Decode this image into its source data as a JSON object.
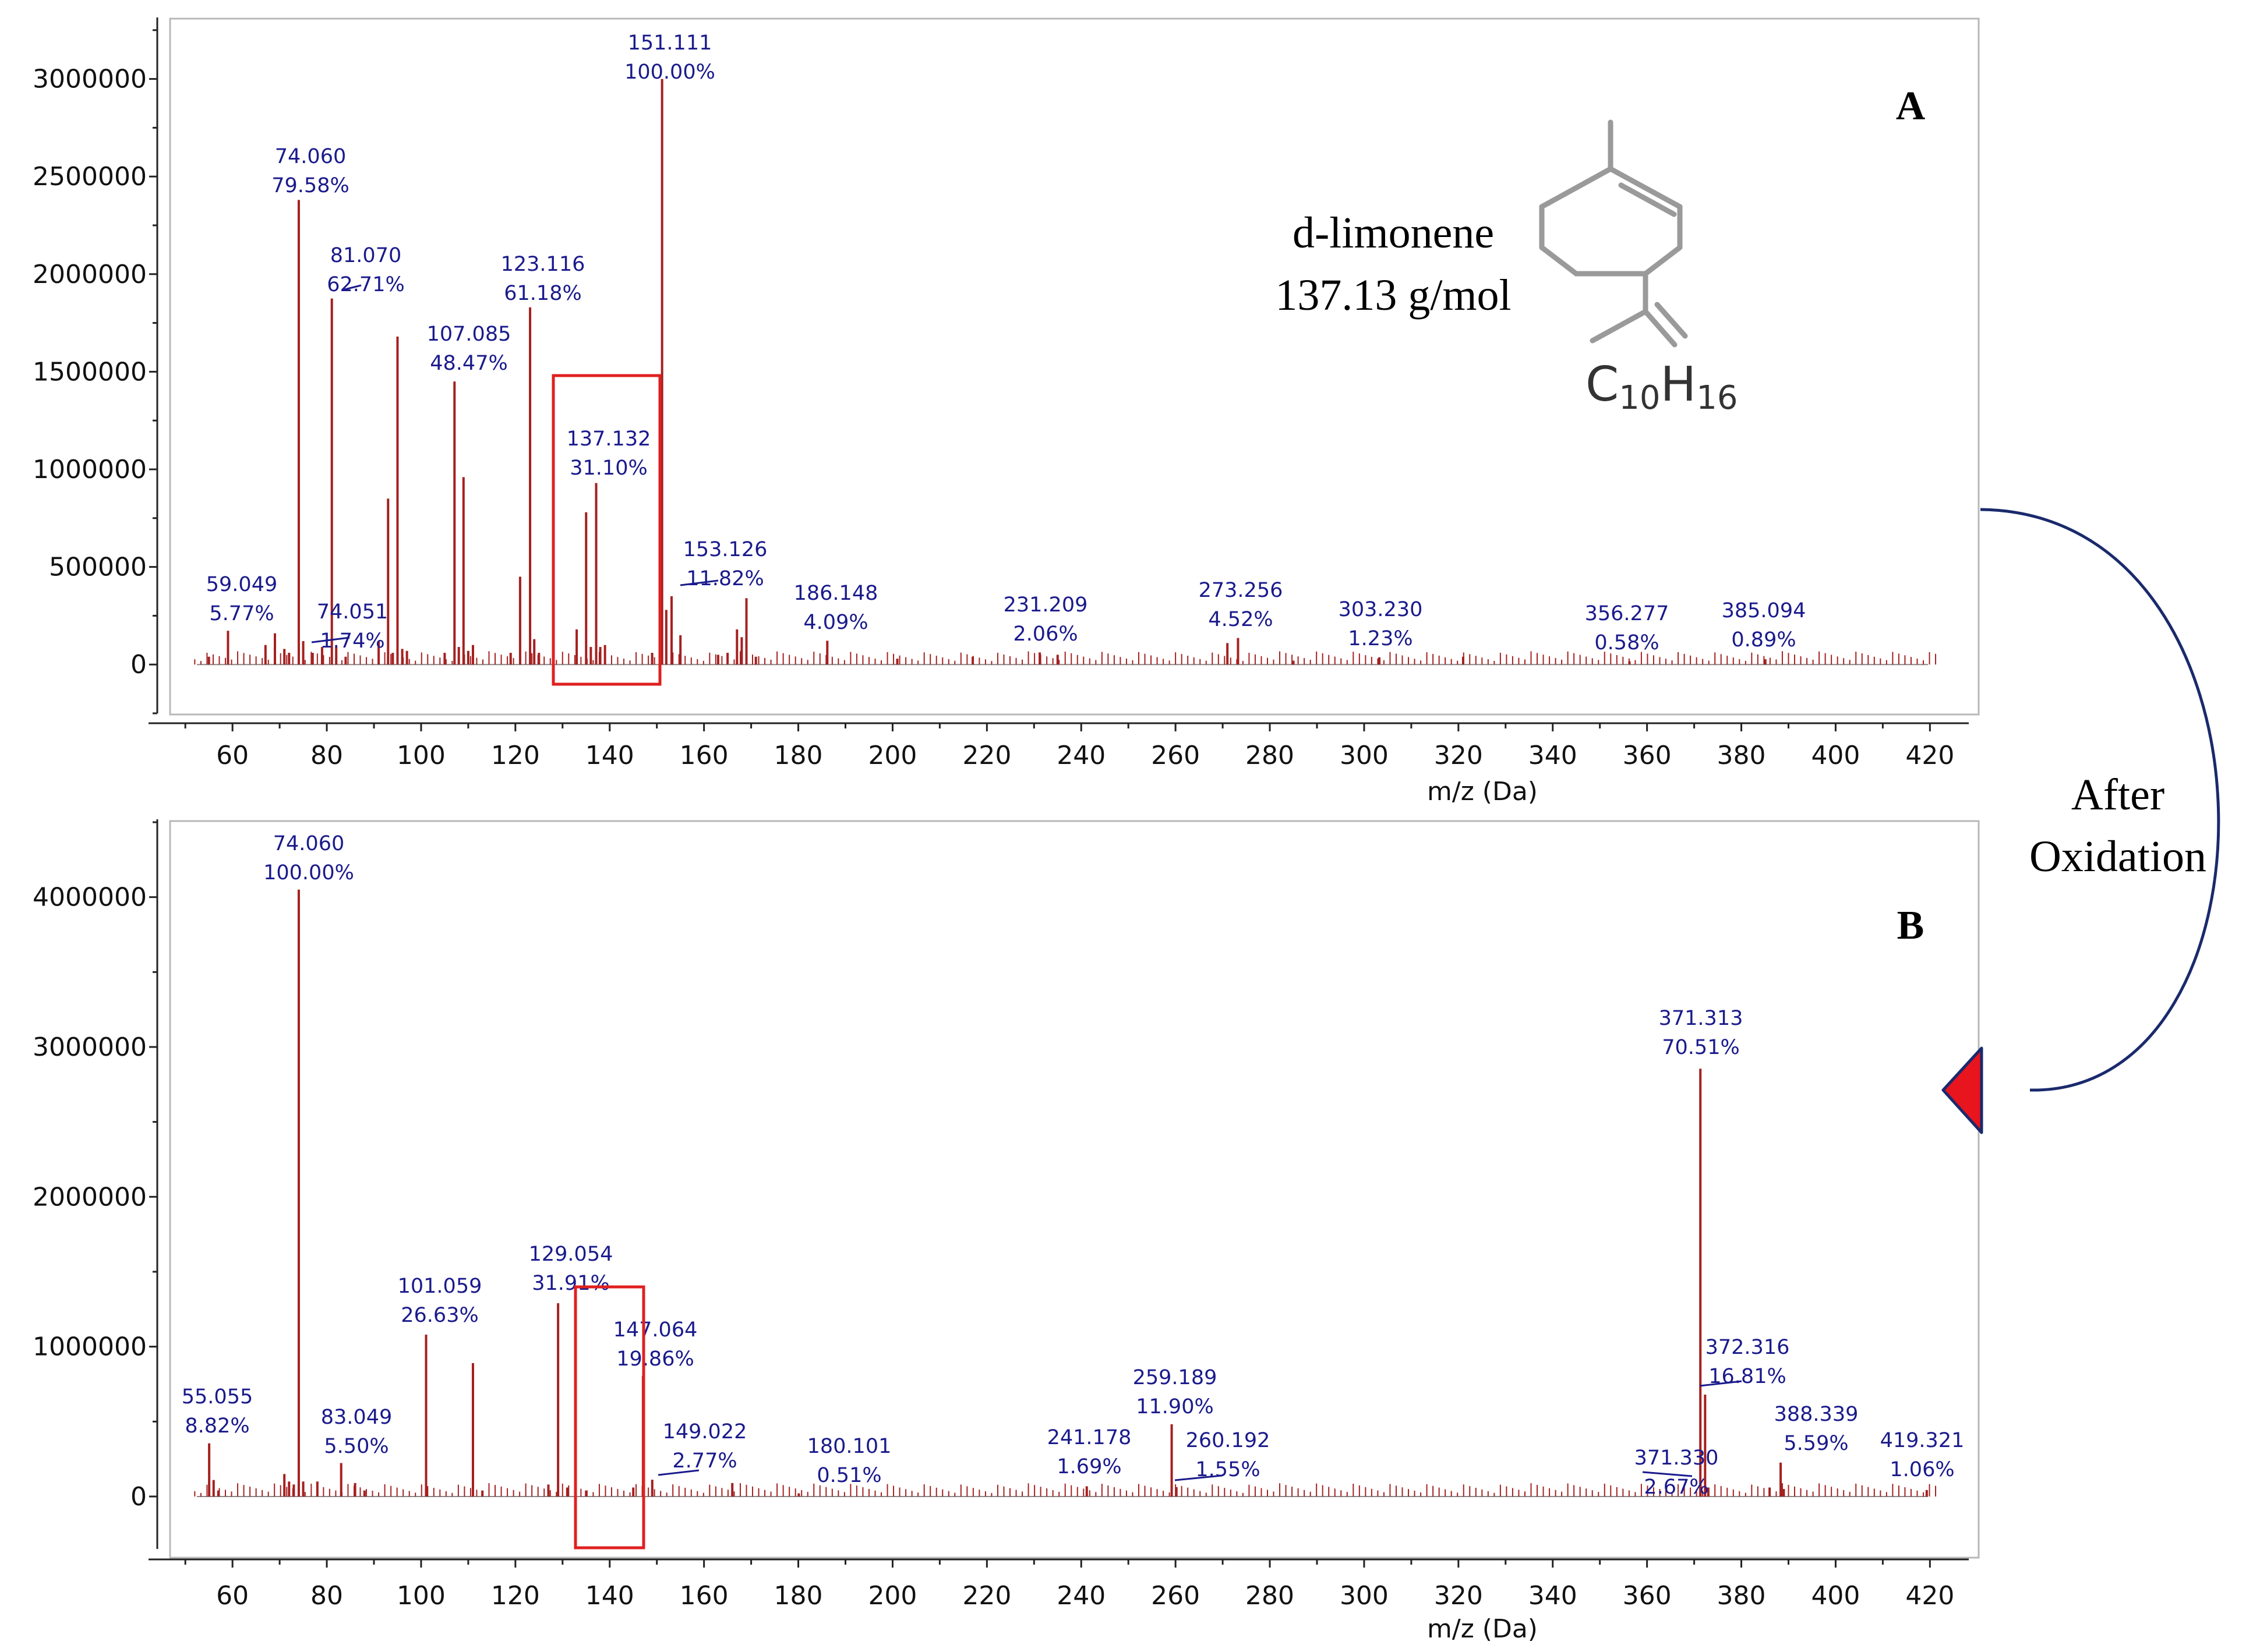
{
  "chart_data": [
    {
      "panel": "A",
      "type": "bar",
      "subtype": "mass-spectrum",
      "xlabel": "m/z (Da)",
      "ylabel": "",
      "xlim": [
        48,
        427
      ],
      "ylim": [
        -250000,
        3300000
      ],
      "xticks": [
        60,
        80,
        100,
        120,
        140,
        160,
        180,
        200,
        220,
        240,
        260,
        280,
        300,
        320,
        340,
        360,
        380,
        400,
        420
      ],
      "yticks": [
        0,
        500000,
        1000000,
        1500000,
        2000000,
        2500000,
        3000000
      ],
      "peaks": [
        {
          "mz": 55,
          "y": 40000
        },
        {
          "mz": 59.049,
          "y": 173000
        },
        {
          "mz": 67,
          "y": 100000
        },
        {
          "mz": 69,
          "y": 160000
        },
        {
          "mz": 71,
          "y": 80000
        },
        {
          "mz": 72,
          "y": 60000
        },
        {
          "mz": 74.06,
          "y": 2380000
        },
        {
          "mz": 75,
          "y": 120000
        },
        {
          "mz": 77,
          "y": 60000
        },
        {
          "mz": 79,
          "y": 90000
        },
        {
          "mz": 81.07,
          "y": 1875000
        },
        {
          "mz": 82,
          "y": 90000
        },
        {
          "mz": 84,
          "y": 40000
        },
        {
          "mz": 91,
          "y": 120000
        },
        {
          "mz": 93,
          "y": 850000
        },
        {
          "mz": 94,
          "y": 60000
        },
        {
          "mz": 95,
          "y": 1680000
        },
        {
          "mz": 96,
          "y": 80000
        },
        {
          "mz": 97,
          "y": 70000
        },
        {
          "mz": 105,
          "y": 60000
        },
        {
          "mz": 107.085,
          "y": 1450000
        },
        {
          "mz": 108,
          "y": 90000
        },
        {
          "mz": 109,
          "y": 960000
        },
        {
          "mz": 110,
          "y": 70000
        },
        {
          "mz": 111,
          "y": 100000
        },
        {
          "mz": 119,
          "y": 60000
        },
        {
          "mz": 121,
          "y": 450000
        },
        {
          "mz": 123.116,
          "y": 1830000
        },
        {
          "mz": 124,
          "y": 130000
        },
        {
          "mz": 125,
          "y": 60000
        },
        {
          "mz": 133,
          "y": 180000
        },
        {
          "mz": 135,
          "y": 780000
        },
        {
          "mz": 136,
          "y": 90000
        },
        {
          "mz": 137.132,
          "y": 930000
        },
        {
          "mz": 138,
          "y": 90000
        },
        {
          "mz": 139,
          "y": 100000
        },
        {
          "mz": 149,
          "y": 60000
        },
        {
          "mz": 151.111,
          "y": 3000000
        },
        {
          "mz": 152,
          "y": 280000
        },
        {
          "mz": 153.126,
          "y": 350000
        },
        {
          "mz": 155,
          "y": 150000
        },
        {
          "mz": 163,
          "y": 50000
        },
        {
          "mz": 165,
          "y": 60000
        },
        {
          "mz": 167,
          "y": 180000
        },
        {
          "mz": 168,
          "y": 140000
        },
        {
          "mz": 169,
          "y": 340000
        },
        {
          "mz": 171,
          "y": 40000
        },
        {
          "mz": 186.148,
          "y": 122000
        },
        {
          "mz": 201,
          "y": 30000
        },
        {
          "mz": 217,
          "y": 40000
        },
        {
          "mz": 231.209,
          "y": 62000
        },
        {
          "mz": 235,
          "y": 50000
        },
        {
          "mz": 271,
          "y": 110000
        },
        {
          "mz": 273.256,
          "y": 136000
        },
        {
          "mz": 285,
          "y": 20000
        },
        {
          "mz": 303.23,
          "y": 37000
        },
        {
          "mz": 321,
          "y": 40000
        },
        {
          "mz": 356.277,
          "y": 17000
        },
        {
          "mz": 385.094,
          "y": 27000
        }
      ],
      "labels": [
        {
          "mz": "59.049",
          "pct": "5.77%"
        },
        {
          "mz": "74.060",
          "pct": "79.58%"
        },
        {
          "mz": "74.051",
          "pct": "1.74%"
        },
        {
          "mz": "81.070",
          "pct": "62.71%"
        },
        {
          "mz": "107.085",
          "pct": "48.47%"
        },
        {
          "mz": "123.116",
          "pct": "61.18%"
        },
        {
          "mz": "137.132",
          "pct": "31.10%"
        },
        {
          "mz": "151.111",
          "pct": "100.00%"
        },
        {
          "mz": "153.126",
          "pct": "11.82%"
        },
        {
          "mz": "186.148",
          "pct": "4.09%"
        },
        {
          "mz": "231.209",
          "pct": "2.06%"
        },
        {
          "mz": "273.256",
          "pct": "4.52%"
        },
        {
          "mz": "303.230",
          "pct": "1.23%"
        },
        {
          "mz": "356.277",
          "pct": "0.58%"
        },
        {
          "mz": "385.094",
          "pct": "0.89%"
        }
      ],
      "highlight_range": [
        127,
        149
      ]
    },
    {
      "panel": "B",
      "type": "bar",
      "subtype": "mass-spectrum",
      "xlabel": "m/z (Da)",
      "ylabel": "",
      "xlim": [
        48,
        427
      ],
      "ylim": [
        -350000,
        4500000
      ],
      "xticks": [
        60,
        80,
        100,
        120,
        140,
        160,
        180,
        200,
        220,
        240,
        260,
        280,
        300,
        320,
        340,
        360,
        380,
        400,
        420
      ],
      "yticks": [
        0,
        1000000,
        2000000,
        3000000,
        4000000
      ],
      "peaks": [
        {
          "mz": 55.055,
          "y": 355000
        },
        {
          "mz": 56,
          "y": 110000
        },
        {
          "mz": 57,
          "y": 40000
        },
        {
          "mz": 71,
          "y": 150000
        },
        {
          "mz": 72,
          "y": 100000
        },
        {
          "mz": 73,
          "y": 80000
        },
        {
          "mz": 74.06,
          "y": 4050000
        },
        {
          "mz": 75,
          "y": 100000
        },
        {
          "mz": 78,
          "y": 100000
        },
        {
          "mz": 83.049,
          "y": 223000
        },
        {
          "mz": 86,
          "y": 90000
        },
        {
          "mz": 88,
          "y": 40000
        },
        {
          "mz": 101.059,
          "y": 1080000
        },
        {
          "mz": 111,
          "y": 890000
        },
        {
          "mz": 113,
          "y": 40000
        },
        {
          "mz": 127,
          "y": 80000
        },
        {
          "mz": 129.054,
          "y": 1290000
        },
        {
          "mz": 131,
          "y": 60000
        },
        {
          "mz": 135,
          "y": 40000
        },
        {
          "mz": 145,
          "y": 60000
        },
        {
          "mz": 147.064,
          "y": 805000
        },
        {
          "mz": 149.022,
          "y": 112000
        },
        {
          "mz": 166,
          "y": 90000
        },
        {
          "mz": 180.101,
          "y": 21000
        },
        {
          "mz": 241.178,
          "y": 68000
        },
        {
          "mz": 259.189,
          "y": 482000
        },
        {
          "mz": 260.192,
          "y": 63000
        },
        {
          "mz": 371.313,
          "y": 2855000
        },
        {
          "mz": 371.33,
          "y": 108000
        },
        {
          "mz": 372.316,
          "y": 680000
        },
        {
          "mz": 373,
          "y": 60000
        },
        {
          "mz": 386,
          "y": 60000
        },
        {
          "mz": 388.339,
          "y": 226000
        },
        {
          "mz": 389,
          "y": 50000
        },
        {
          "mz": 419.321,
          "y": 43000
        }
      ],
      "labels": [
        {
          "mz": "74.060",
          "pct": "100.00%"
        },
        {
          "mz": "55.055",
          "pct": "8.82%"
        },
        {
          "mz": "83.049",
          "pct": "5.50%"
        },
        {
          "mz": "101.059",
          "pct": "26.63%"
        },
        {
          "mz": "129.054",
          "pct": "31.91%"
        },
        {
          "mz": "147.064",
          "pct": "19.86%"
        },
        {
          "mz": "149.022",
          "pct": "2.77%"
        },
        {
          "mz": "180.101",
          "pct": "0.51%"
        },
        {
          "mz": "241.178",
          "pct": "1.69%"
        },
        {
          "mz": "259.189",
          "pct": "11.90%"
        },
        {
          "mz": "260.192",
          "pct": "1.55%"
        },
        {
          "mz": "371.313",
          "pct": "70.51%"
        },
        {
          "mz": "372.316",
          "pct": "16.81%"
        },
        {
          "mz": "371.330",
          "pct": "2.67%"
        },
        {
          "mz": "388.339",
          "pct": "5.59%"
        },
        {
          "mz": "419.321",
          "pct": "1.06%"
        }
      ],
      "highlight_range": [
        131.5,
        145
      ]
    }
  ],
  "annotations": {
    "panel_a_letter": "A",
    "panel_b_letter": "B",
    "compound_name": "d-limonene",
    "compound_mass": "137.13 g/mol",
    "formula_c": "C",
    "formula_c_sub": "10",
    "formula_h": "H",
    "formula_h_sub": "16",
    "arrow_line1": "After",
    "arrow_line2": "Oxidation"
  },
  "colors": {
    "peak": "#a52020",
    "label": "#1a1a8c",
    "highlight_box": "#e02020",
    "arrow_line": "#1a2a6c",
    "arrow_head": "#e8141e",
    "frame": "#b8b8b8"
  }
}
